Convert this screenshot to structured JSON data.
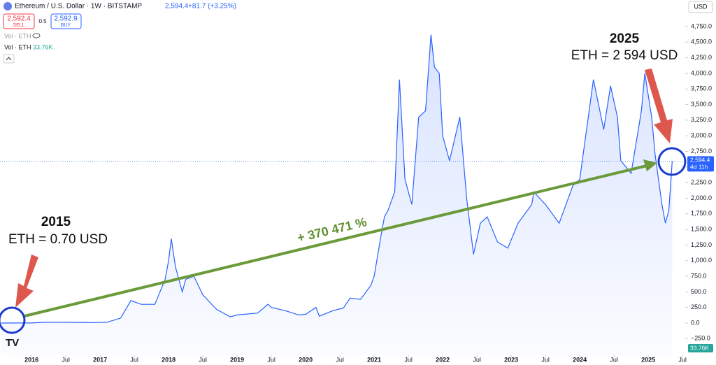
{
  "header": {
    "symbol": "Ethereum / U.S. Dollar · 1W · BITSTAMP",
    "last": "2,594.4",
    "change": "+81.7 (+3.25%)",
    "sell_price": "2,592.4",
    "sell": "SELL",
    "spread": "0.5",
    "buy_price": "2,592.9",
    "buy": "BUY",
    "vol_label": "Vol · ETH",
    "vol_label_2": "Vol · ETH",
    "vol_value": "33.76K",
    "currency": "USD"
  },
  "chart_data": {
    "type": "line",
    "color": "#2962ff",
    "grid": false,
    "x": [
      2015.56,
      2015.8,
      2016.0,
      2016.2,
      2016.5,
      2016.9,
      2017.1,
      2017.3,
      2017.45,
      2017.6,
      2017.8,
      2017.95,
      2018.0,
      2018.04,
      2018.1,
      2018.2,
      2018.25,
      2018.37,
      2018.5,
      2018.7,
      2018.9,
      2019.0,
      2019.3,
      2019.45,
      2019.5,
      2019.7,
      2019.9,
      2020.0,
      2020.15,
      2020.2,
      2020.4,
      2020.55,
      2020.65,
      2020.8,
      2020.95,
      2021.0,
      2021.1,
      2021.15,
      2021.2,
      2021.3,
      2021.37,
      2021.45,
      2021.55,
      2021.65,
      2021.75,
      2021.83,
      2021.88,
      2021.95,
      2022.0,
      2022.1,
      2022.25,
      2022.35,
      2022.45,
      2022.55,
      2022.65,
      2022.8,
      2022.95,
      2023.1,
      2023.3,
      2023.33,
      2023.5,
      2023.7,
      2023.9,
      2024.0,
      2024.15,
      2024.2,
      2024.35,
      2024.45,
      2024.55,
      2024.6,
      2024.75,
      2024.9,
      2024.95,
      2025.05,
      2025.1,
      2025.2,
      2025.25,
      2025.3,
      2025.35
    ],
    "values": [
      0.7,
      1,
      1,
      12,
      12,
      8,
      12,
      80,
      360,
      300,
      300,
      700,
      1000,
      1350,
      900,
      500,
      700,
      750,
      450,
      220,
      100,
      130,
      160,
      300,
      250,
      200,
      130,
      140,
      250,
      110,
      200,
      240,
      400,
      380,
      600,
      750,
      1400,
      1700,
      1800,
      2100,
      3900,
      2300,
      1900,
      3300,
      3400,
      4620,
      4100,
      4000,
      3000,
      2600,
      3300,
      2000,
      1100,
      1600,
      1700,
      1300,
      1200,
      1600,
      1900,
      2100,
      1900,
      1600,
      2200,
      2300,
      3500,
      3900,
      3100,
      3800,
      3300,
      2600,
      2400,
      3400,
      4000,
      3300,
      2700,
      1900,
      1600,
      1800,
      2594.4
    ],
    "xlim": [
      2015.54,
      2025.54
    ],
    "ylim": [
      -515,
      5175
    ],
    "xticks": [
      {
        "value": 2016,
        "label": "2016"
      },
      {
        "value": 2016.5,
        "label": "Jul"
      },
      {
        "value": 2017,
        "label": "2017"
      },
      {
        "value": 2017.5,
        "label": "Jul"
      },
      {
        "value": 2018,
        "label": "2018"
      },
      {
        "value": 2018.5,
        "label": "Jul"
      },
      {
        "value": 2019,
        "label": "2019"
      },
      {
        "value": 2019.5,
        "label": "Jul"
      },
      {
        "value": 2020,
        "label": "2020"
      },
      {
        "value": 2020.5,
        "label": "Jul"
      },
      {
        "value": 2021,
        "label": "2021"
      },
      {
        "value": 2021.5,
        "label": "Jul"
      },
      {
        "value": 2022,
        "label": "2022"
      },
      {
        "value": 2022.5,
        "label": "Jul"
      },
      {
        "value": 2023,
        "label": "2023"
      },
      {
        "value": 2023.5,
        "label": "Jul"
      },
      {
        "value": 2024,
        "label": "2024"
      },
      {
        "value": 2024.5,
        "label": "Jul"
      },
      {
        "value": 2025,
        "label": "2025"
      },
      {
        "value": 2025.5,
        "label": "Jul"
      }
    ],
    "yticks": [
      {
        "value": -250,
        "label": "−250.0"
      },
      {
        "value": 0,
        "label": "0.0"
      },
      {
        "value": 250,
        "label": "250.0"
      },
      {
        "value": 500,
        "label": "500.0"
      },
      {
        "value": 750,
        "label": "750.0"
      },
      {
        "value": 1000,
        "label": "1,000.0"
      },
      {
        "value": 1250,
        "label": "1,250.0"
      },
      {
        "value": 1500,
        "label": "1,500.0"
      },
      {
        "value": 1750,
        "label": "1,750.0"
      },
      {
        "value": 2000,
        "label": "2,000.0"
      },
      {
        "value": 2250,
        "label": "2,250.0"
      },
      {
        "value": 2500,
        "label": "2,500.0"
      },
      {
        "value": 2750,
        "label": "2,750.0"
      },
      {
        "value": 3000,
        "label": "3,000.0"
      },
      {
        "value": 3250,
        "label": "3,250.0"
      },
      {
        "value": 3500,
        "label": "3,500.0"
      },
      {
        "value": 3750,
        "label": "3,750.0"
      },
      {
        "value": 4000,
        "label": "4,000.0"
      },
      {
        "value": 4250,
        "label": "4,250.0"
      },
      {
        "value": 4500,
        "label": "4,500.0"
      },
      {
        "value": 4750,
        "label": "4,750.0"
      }
    ],
    "last_price": {
      "value": 2594.4,
      "label": "2,594.4"
    },
    "countdown": "4d 11h",
    "volume_badge": "33.76K",
    "annotations": {
      "start_year": "2015",
      "start_price": "ETH = 0.70 USD",
      "end_year": "2025",
      "end_price": "ETH = 2 594 USD",
      "gain": "+ 370 471 %"
    }
  }
}
